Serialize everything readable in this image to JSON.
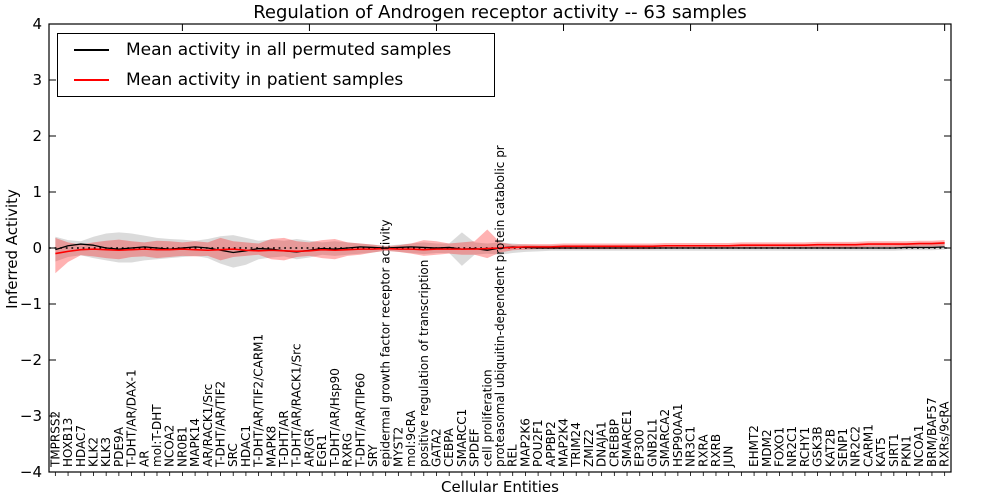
{
  "title": "Regulation of Androgen receptor activity -- 63 samples",
  "axes": {
    "xlabel": "Cellular Entities",
    "ylabel": "Inferred Activity",
    "ylim": [
      -4,
      4
    ],
    "ytick_labels": [
      "4",
      "3",
      "2",
      "1",
      "0",
      "−1",
      "−2",
      "−3",
      "−4"
    ],
    "ytick_values": [
      4,
      3,
      2,
      1,
      0,
      -1,
      -2,
      -3,
      -4
    ],
    "grid": false,
    "top_tick_every": 10
  },
  "legend": {
    "position": "upper left",
    "entries": [
      {
        "label": "Mean activity in all permuted samples",
        "color": "#000000"
      },
      {
        "label": "Mean activity in patient samples",
        "color": "#ff0000"
      }
    ]
  },
  "chart_data": {
    "type": "line",
    "title": "Regulation of Androgen receptor activity -- 63 samples",
    "xlabel": "Cellular Entities",
    "ylabel": "Inferred Activity",
    "ylim": [
      -4,
      4
    ],
    "baseline": 0,
    "baseline_style": "dotted",
    "categories": [
      "TMPRSS2",
      "HOXB13",
      "HDAC7",
      "KLK2",
      "KLK3",
      "PDE9A",
      "T-DHT/AR/DAX-1",
      "AR",
      "mol:T-DHT",
      "NCOA2",
      "NR0B1",
      "MAPK14",
      "AR/RACK1/Src",
      "T-DHT/AR/TIF2",
      "SRC",
      "HDAC1",
      "T-DHT/AR/TIF2/CARM1",
      "MAPK8",
      "T-DHT/AR",
      "T-DHT/AR/RACK1/Src",
      "AR/GR",
      "EGR1",
      "T-DHT/AR/Hsp90",
      "RXRG",
      "T-DHT/AR/TIP60",
      "SRY",
      "epidermal growth factor receptor activity",
      "MYST2",
      "mol:9cRA",
      "positive regulation of transcription",
      "GATA2",
      "CEBPA",
      "SMARCC1",
      "SPDEF",
      "cell proliferation",
      "proteasomal ubiquitin-dependent protein catabolic pr",
      "REL",
      "MAP2K6",
      "POU2F1",
      "APPBP2",
      "MAP2K4",
      "TRIM24",
      "ZMIZ2",
      "DNAJA1",
      "CREBBP",
      "SMARCE1",
      "EP300",
      "GNB2L1",
      "SMARCA2",
      "HSP90AA1",
      "NR3C1",
      "RXRA",
      "RXRB",
      "JUN",
      "",
      "EHMT2",
      "MDM2",
      "FOXO1",
      "NR2C1",
      "RCHY1",
      "GSK3B",
      "KAT2B",
      "SENP1",
      "NR2C2",
      "CARM1",
      "KAT5",
      "SIRT1",
      "PKN1",
      "NCOA1",
      "BRM/BAF57",
      "RXRs/9cRA"
    ],
    "series": [
      {
        "name": "Mean activity in all permuted samples",
        "color": "#000000",
        "band_color": "#999999",
        "mean": [
          -0.03,
          0.04,
          0.07,
          0.05,
          0.0,
          -0.02,
          0.0,
          0.02,
          0.0,
          -0.02,
          0.0,
          0.02,
          0.0,
          -0.04,
          -0.08,
          -0.05,
          -0.01,
          -0.02,
          -0.05,
          -0.07,
          -0.04,
          -0.01,
          -0.02,
          0.0,
          0.02,
          0.01,
          0.0,
          0.01,
          0.02,
          0.01,
          0.0,
          0.01,
          -0.02,
          -0.01,
          -0.04,
          0.0,
          0.02,
          0.01,
          0.0,
          0.0,
          0.0,
          0.0,
          0.0,
          0.0,
          0.0,
          0.0,
          0.0,
          0.0,
          0.0,
          0.0,
          0.0,
          0.0,
          0.0,
          0.0,
          0.0,
          0.0,
          0.0,
          0.0,
          0.0,
          0.0,
          0.0,
          0.0,
          0.0,
          0.0,
          0.0,
          0.0,
          0.0,
          0.01,
          0.01,
          0.01,
          0.02
        ],
        "band_hi": [
          0.2,
          0.14,
          0.12,
          0.2,
          0.26,
          0.28,
          0.26,
          0.22,
          0.18,
          0.16,
          0.15,
          0.13,
          0.16,
          0.21,
          0.23,
          0.18,
          0.13,
          0.15,
          0.13,
          0.16,
          0.13,
          0.1,
          0.12,
          0.1,
          0.08,
          0.06,
          0.04,
          0.06,
          0.08,
          0.1,
          0.08,
          0.08,
          0.28,
          0.1,
          0.08,
          0.1,
          0.08,
          0.06,
          0.05,
          0.05,
          0.05,
          0.05,
          0.05,
          0.05,
          0.05,
          0.05,
          0.05,
          0.05,
          0.05,
          0.05,
          0.05,
          0.05,
          0.05,
          0.05,
          0.05,
          0.05,
          0.05,
          0.05,
          0.05,
          0.05,
          0.05,
          0.05,
          0.05,
          0.05,
          0.05,
          0.05,
          0.05,
          0.06,
          0.06,
          0.07,
          0.08
        ],
        "band_lo": [
          -0.24,
          -0.16,
          -0.13,
          -0.18,
          -0.22,
          -0.26,
          -0.26,
          -0.22,
          -0.2,
          -0.18,
          -0.16,
          -0.14,
          -0.18,
          -0.28,
          -0.35,
          -0.3,
          -0.2,
          -0.17,
          -0.15,
          -0.2,
          -0.17,
          -0.12,
          -0.14,
          -0.12,
          -0.1,
          -0.08,
          -0.05,
          -0.07,
          -0.09,
          -0.11,
          -0.09,
          -0.09,
          -0.32,
          -0.12,
          -0.1,
          -0.12,
          -0.09,
          -0.07,
          -0.06,
          -0.05,
          -0.05,
          -0.05,
          -0.05,
          -0.05,
          -0.05,
          -0.05,
          -0.05,
          -0.05,
          -0.05,
          -0.05,
          -0.05,
          -0.05,
          -0.05,
          -0.05,
          -0.05,
          -0.05,
          -0.05,
          -0.05,
          -0.05,
          -0.05,
          -0.05,
          -0.05,
          -0.05,
          -0.05,
          -0.05,
          -0.05,
          -0.05,
          -0.04,
          -0.04,
          -0.04,
          -0.03
        ]
      },
      {
        "name": "Mean activity in patient samples",
        "color": "#ff0000",
        "band_color": "#ff0000",
        "mean": [
          -0.1,
          -0.06,
          -0.03,
          -0.02,
          -0.03,
          -0.04,
          -0.03,
          -0.02,
          -0.03,
          -0.03,
          -0.02,
          -0.03,
          -0.04,
          -0.03,
          -0.02,
          -0.04,
          -0.05,
          -0.04,
          -0.05,
          -0.06,
          -0.05,
          -0.03,
          -0.04,
          -0.03,
          -0.02,
          -0.02,
          -0.01,
          -0.02,
          -0.02,
          -0.03,
          -0.02,
          -0.02,
          -0.02,
          -0.02,
          -0.01,
          0.0,
          0.01,
          0.02,
          0.02,
          0.02,
          0.03,
          0.03,
          0.03,
          0.03,
          0.03,
          0.03,
          0.03,
          0.03,
          0.04,
          0.04,
          0.04,
          0.04,
          0.04,
          0.04,
          0.05,
          0.05,
          0.05,
          0.05,
          0.05,
          0.05,
          0.06,
          0.06,
          0.06,
          0.06,
          0.07,
          0.07,
          0.07,
          0.07,
          0.08,
          0.08,
          0.09
        ],
        "band_hi": [
          0.18,
          0.1,
          0.06,
          0.1,
          0.13,
          0.15,
          0.12,
          0.1,
          0.13,
          0.12,
          0.1,
          0.12,
          0.1,
          0.18,
          0.12,
          0.1,
          0.08,
          0.16,
          0.18,
          0.12,
          0.1,
          0.14,
          0.16,
          0.1,
          0.08,
          0.06,
          0.03,
          0.05,
          0.08,
          0.14,
          0.12,
          0.08,
          0.1,
          0.12,
          0.33,
          0.1,
          0.06,
          0.07,
          0.07,
          0.07,
          0.08,
          0.08,
          0.08,
          0.08,
          0.08,
          0.08,
          0.08,
          0.08,
          0.09,
          0.09,
          0.09,
          0.09,
          0.09,
          0.09,
          0.1,
          0.1,
          0.1,
          0.1,
          0.1,
          0.1,
          0.11,
          0.11,
          0.11,
          0.11,
          0.12,
          0.12,
          0.12,
          0.12,
          0.13,
          0.13,
          0.14
        ],
        "band_lo": [
          -0.45,
          -0.25,
          -0.13,
          -0.15,
          -0.18,
          -0.2,
          -0.16,
          -0.15,
          -0.18,
          -0.16,
          -0.14,
          -0.15,
          -0.14,
          -0.22,
          -0.16,
          -0.14,
          -0.12,
          -0.2,
          -0.22,
          -0.16,
          -0.14,
          -0.18,
          -0.2,
          -0.14,
          -0.12,
          -0.08,
          -0.05,
          -0.07,
          -0.1,
          -0.14,
          -0.12,
          -0.1,
          -0.12,
          -0.12,
          -0.18,
          -0.08,
          -0.04,
          -0.03,
          -0.02,
          -0.02,
          -0.02,
          -0.02,
          -0.02,
          -0.02,
          -0.02,
          -0.02,
          -0.02,
          -0.02,
          -0.01,
          -0.01,
          -0.01,
          -0.01,
          -0.01,
          -0.01,
          0.0,
          0.0,
          0.0,
          0.0,
          0.0,
          0.0,
          0.01,
          0.01,
          0.01,
          0.01,
          0.02,
          0.02,
          0.02,
          0.02,
          0.03,
          0.03,
          0.04
        ]
      }
    ]
  }
}
